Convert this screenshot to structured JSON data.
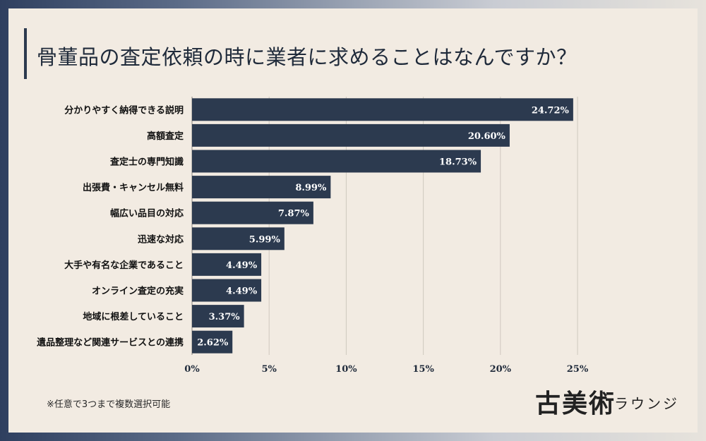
{
  "title": "骨董品の査定依頼の時に業者に求めることはなんですか？",
  "note": "※任意で3つまで複数選択可能",
  "logo": {
    "main": "古美術",
    "sub": "ラウンジ"
  },
  "colors": {
    "bar": "#2c3a4f",
    "grid": "#cfc8bf",
    "label_inside": "#ffffff",
    "text": "#1f2a3a"
  },
  "chart_data": {
    "type": "bar",
    "orientation": "horizontal",
    "title": "骨董品の査定依頼の時に業者に求めることはなんですか？",
    "categories": [
      "分かりやすく納得できる説明",
      "高額査定",
      "査定士の専門知識",
      "出張費・キャンセル無料",
      "幅広い品目の対応",
      "迅速な対応",
      "大手や有名な企業であること",
      "オンライン査定の充実",
      "地域に根差していること",
      "遺品整理など関連サービスとの連携"
    ],
    "values": [
      24.72,
      20.6,
      18.73,
      8.99,
      7.87,
      5.99,
      4.49,
      4.49,
      3.37,
      2.62
    ],
    "value_labels": [
      "24.72%",
      "20.60%",
      "18.73%",
      "8.99%",
      "7.87%",
      "5.99%",
      "4.49%",
      "4.49%",
      "3.37%",
      "2.62%"
    ],
    "x_ticks": [
      0,
      5,
      10,
      15,
      20,
      25
    ],
    "x_tick_labels": [
      "0%",
      "5%",
      "10%",
      "15%",
      "20%",
      "25%"
    ],
    "xlim": [
      0,
      25
    ],
    "grid": true,
    "legend": "none"
  }
}
